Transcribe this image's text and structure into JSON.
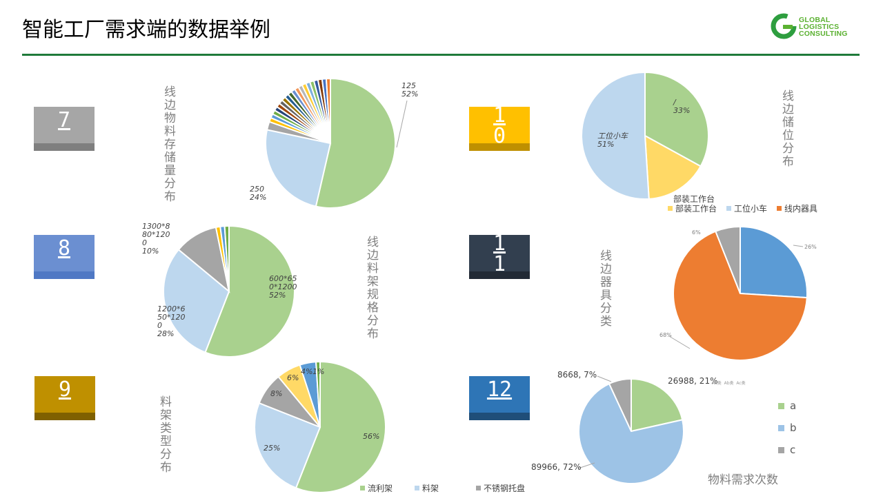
{
  "header": {
    "title": "智能工厂需求端的数据举例",
    "logo_text": [
      "GLOBAL",
      "LOGISTICS",
      "CONSULTING"
    ]
  },
  "badges": [
    {
      "num": "7",
      "bg": "#a6a6a6",
      "band": "#7f7f7f"
    },
    {
      "num": "8",
      "bg": "#6b8fd1",
      "band": "#4f78c4"
    },
    {
      "num": "9",
      "bg": "#bf9000",
      "band": "#7f6000"
    },
    {
      "num": "1\n0",
      "bg": "#ffc000",
      "band": "#bf9000"
    },
    {
      "num": "1\n1",
      "bg": "#323f4f",
      "band": "#222a35"
    },
    {
      "num": "12",
      "bg": "#2e75b6",
      "band": "#1f4e79"
    }
  ],
  "labels": {
    "c7": "线边物料存储量分布",
    "c8": "线边料架规格分布",
    "c9": "料架类型分布",
    "c10": "线边储位分布",
    "c11": "线边器具分类",
    "c12_caption": "物料需求次数"
  },
  "chart_data": [
    {
      "id": "c7",
      "type": "pie",
      "slices": [
        {
          "label": "125\n52%",
          "value": 52,
          "color": "#a9d18e"
        },
        {
          "label": "250\n24%",
          "value": 24,
          "color": "#bdd7ee"
        },
        {
          "label": "",
          "value": 2,
          "color": "#a5a5a5"
        },
        {
          "label": "",
          "value": 1,
          "color": "#ffc000"
        },
        {
          "label": "",
          "value": 1,
          "color": "#5b9bd5"
        },
        {
          "label": "",
          "value": 1,
          "color": "#70ad47"
        },
        {
          "label": "",
          "value": 1,
          "color": "#264478"
        },
        {
          "label": "",
          "value": 1,
          "color": "#9e480e"
        },
        {
          "label": "",
          "value": 1,
          "color": "#636363"
        },
        {
          "label": "",
          "value": 1,
          "color": "#997300"
        },
        {
          "label": "",
          "value": 1,
          "color": "#255e91"
        },
        {
          "label": "",
          "value": 1,
          "color": "#43682b"
        },
        {
          "label": "",
          "value": 1,
          "color": "#698ed0"
        },
        {
          "label": "",
          "value": 1,
          "color": "#f1975a"
        },
        {
          "label": "",
          "value": 1,
          "color": "#b7b7b7"
        },
        {
          "label": "",
          "value": 1,
          "color": "#ffcd33"
        },
        {
          "label": "",
          "value": 1,
          "color": "#7cafdd"
        },
        {
          "label": "",
          "value": 1,
          "color": "#8cc168"
        },
        {
          "label": "",
          "value": 1,
          "color": "#335aa1"
        },
        {
          "label": "",
          "value": 1,
          "color": "#843c0c"
        },
        {
          "label": "",
          "value": 1,
          "color": "#4472c4"
        },
        {
          "label": "",
          "value": 1,
          "color": "#ed7d31"
        }
      ]
    },
    {
      "id": "c8",
      "type": "pie",
      "slices": [
        {
          "label": "600*65\n0*1200\n52%",
          "value": 52,
          "color": "#a9d18e"
        },
        {
          "label": "1200*6\n50*120\n0\n28%",
          "value": 28,
          "color": "#bdd7ee"
        },
        {
          "label": "1300*8\n80*120\n0\n10%",
          "value": 10,
          "color": "#a5a5a5"
        },
        {
          "label": "",
          "value": 1,
          "color": "#ffc000"
        },
        {
          "label": "",
          "value": 1,
          "color": "#5b9bd5"
        },
        {
          "label": "",
          "value": 1,
          "color": "#70ad47"
        }
      ]
    },
    {
      "id": "c9",
      "type": "pie",
      "legend": [
        "流利架",
        "料架",
        "不锈钢托盘"
      ],
      "slices": [
        {
          "label": "56%",
          "value": 56,
          "color": "#a9d18e"
        },
        {
          "label": "25%",
          "value": 25,
          "color": "#bdd7ee"
        },
        {
          "label": "8%",
          "value": 8,
          "color": "#a5a5a5"
        },
        {
          "label": "6%",
          "value": 6,
          "color": "#ffd966"
        },
        {
          "label": "4%",
          "value": 4,
          "color": "#5b9bd5"
        },
        {
          "label": "1%",
          "value": 1,
          "color": "#70ad47"
        }
      ]
    },
    {
      "id": "c10",
      "type": "pie",
      "legend_title": "部装工作台",
      "legend": [
        "部装工作台",
        "工位小车",
        "线内器具"
      ],
      "slices": [
        {
          "label": "/\n33%",
          "value": 33,
          "color": "#a9d18e"
        },
        {
          "label": "",
          "value": 16,
          "color": "#ffd966"
        },
        {
          "label": "工位小车\n51%",
          "value": 51,
          "color": "#bdd7ee"
        }
      ]
    },
    {
      "id": "c11",
      "type": "pie",
      "legend": [
        "Aa类",
        "Ab类",
        "Ac类"
      ],
      "slices": [
        {
          "label": "26%",
          "value": 26,
          "color": "#5b9bd5"
        },
        {
          "label": "68%",
          "value": 68,
          "color": "#ed7d31"
        },
        {
          "label": "6%",
          "value": 6,
          "color": "#a5a5a5"
        }
      ]
    },
    {
      "id": "c12",
      "type": "pie",
      "legend": [
        "a",
        "b",
        "c"
      ],
      "slices": [
        {
          "label": "26988, 21%",
          "value": 26988,
          "color": "#a9d18e"
        },
        {
          "label": "89966, 72%",
          "value": 89966,
          "color": "#9dc3e6"
        },
        {
          "label": "8668, 7%",
          "value": 8668,
          "color": "#a5a5a5"
        }
      ]
    }
  ]
}
